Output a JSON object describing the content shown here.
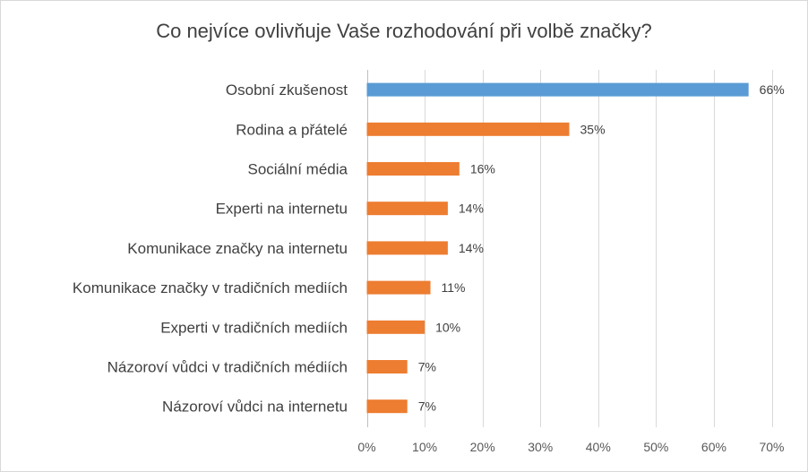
{
  "chart_data": {
    "type": "bar",
    "orientation": "horizontal",
    "title": "Co nejvíce ovlivňuje Vaše rozhodování při volbě značky?",
    "xlabel": "",
    "ylabel": "",
    "xlim": [
      0,
      70
    ],
    "ticks": [
      0,
      10,
      20,
      30,
      40,
      50,
      60,
      70
    ],
    "tick_suffix": "%",
    "grid": "vertical",
    "legend": "none",
    "categories": [
      "Osobní zkušenost",
      "Rodina a přátelé",
      "Sociální média",
      "Experti na internetu",
      "Komunikace značky na internetu",
      "Komunikace značky v tradičních mediích",
      "Experti v tradičních mediích",
      "Názoroví vůdci v tradičních médiích",
      "Názoroví vůdci na internetu"
    ],
    "values": [
      66,
      35,
      16,
      14,
      14,
      11,
      10,
      7,
      7
    ],
    "data_labels": [
      "66%",
      "35%",
      "16%",
      "14%",
      "14%",
      "11%",
      "10%",
      "7%",
      "7%"
    ],
    "colors": {
      "highlight": "#5b9bd5",
      "default": "#ed7d31",
      "grid": "#d9d9d9",
      "axis": "#bfbfbf"
    },
    "highlight_index": 0
  }
}
